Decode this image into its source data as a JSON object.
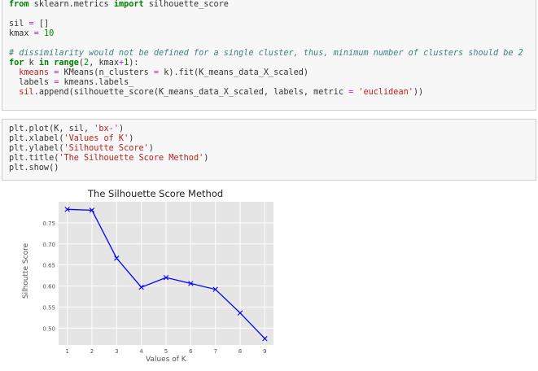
{
  "code_cell_1": {
    "lines": [
      "from sklearn.metrics import silhouette_score",
      "",
      "sil = []",
      "kmax = 10",
      "",
      "# dissimilarity would not be defined for a single cluster, thus, minimum number of clusters should be 2",
      "for k in range(2, kmax+1):",
      "  kmeans = KMeans(n_clusters = k).fit(K_means_data_X_scaled)",
      "  labels = kmeans.labels_",
      "  sil.append(silhouette_score(K_means_data_X_scaled, labels, metric = 'euclidean'))"
    ]
  },
  "code_cell_2": {
    "lines": [
      "plt.plot(K, sil, 'bx-')",
      "plt.xlabel('Values of K')",
      "plt.ylabel('Silhoutte Score')",
      "plt.title('The Silhouette Score Method')",
      "plt.show()"
    ]
  },
  "chart_data": {
    "type": "line",
    "title": "The Silhouette Score Method",
    "xlabel": "Values of K",
    "ylabel": "Silhoutte Score",
    "x": [
      1,
      2,
      3,
      4,
      5,
      6,
      7,
      8,
      9
    ],
    "y": [
      0.782,
      0.78,
      0.666,
      0.597,
      0.62,
      0.606,
      0.592,
      0.536,
      0.475
    ],
    "xlim": [
      0.65,
      9.35
    ],
    "ylim": [
      0.46,
      0.8
    ],
    "xticks": [
      "1",
      "2",
      "3",
      "4",
      "5",
      "6",
      "7",
      "8",
      "9"
    ],
    "yticks": [
      "0.50",
      "0.55",
      "0.60",
      "0.65",
      "0.70",
      "0.75"
    ],
    "line_color": "#0000ff",
    "background": "#e5e5e5",
    "grid": true
  }
}
